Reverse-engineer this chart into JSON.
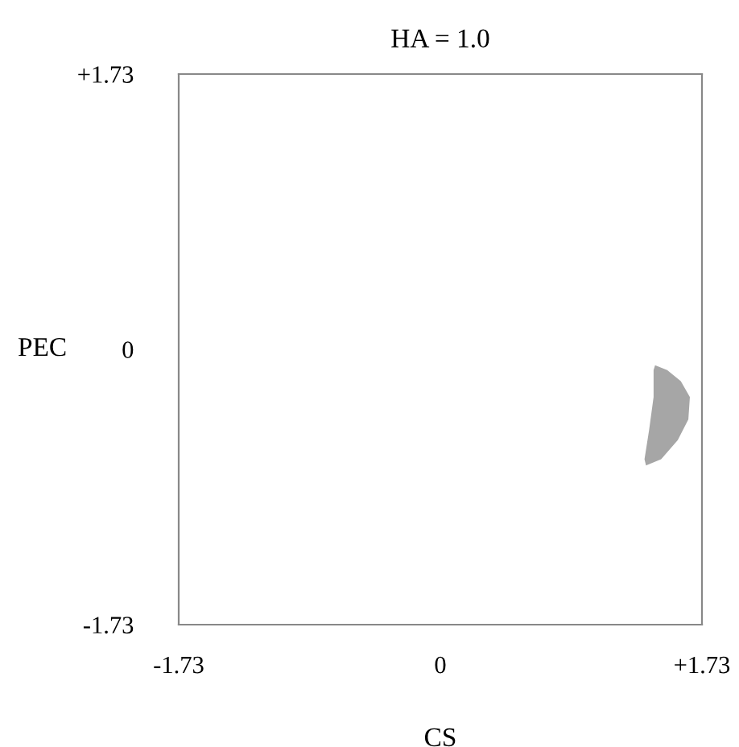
{
  "chart_data": {
    "type": "area",
    "title": "HA = 1.0",
    "xlabel": "CS",
    "ylabel": "PEC",
    "xlim": [
      -1.73,
      1.73
    ],
    "ylim": [
      -1.73,
      1.73
    ],
    "xticks": [
      {
        "value": -1.73,
        "label": "-1.73"
      },
      0,
      {
        "value": 1.73,
        "label": "+1.73"
      }
    ],
    "yticks": [
      {
        "value": -1.73,
        "label": "-1.73"
      },
      0,
      {
        "value": 1.73,
        "label": "+1.73"
      }
    ],
    "grid": false,
    "legend": false,
    "series": [
      {
        "color": "#a6a6a6",
        "x": [
          1.42,
          1.5,
          1.59,
          1.65,
          1.64,
          1.57,
          1.46,
          1.36,
          1.35,
          1.38,
          1.41,
          1.41
        ],
        "values": [
          -0.1,
          -0.13,
          -0.2,
          -0.3,
          -0.44,
          -0.57,
          -0.69,
          -0.73,
          -0.69,
          -0.51,
          -0.3,
          -0.13
        ]
      }
    ]
  }
}
